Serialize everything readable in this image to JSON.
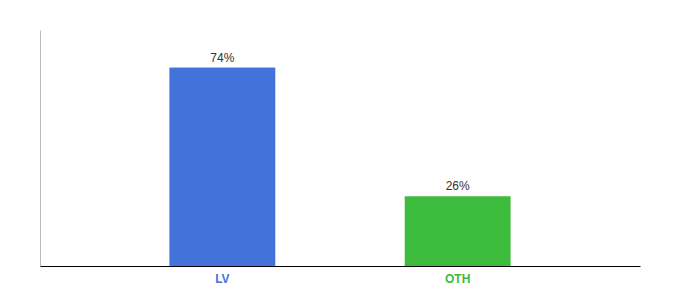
{
  "chart_data": {
    "type": "bar",
    "categories": [
      "LV",
      "OTH"
    ],
    "values": [
      74,
      26
    ],
    "value_labels": [
      "74%",
      "26%"
    ],
    "colors": [
      "#4472db",
      "#3dbb3d"
    ],
    "ylim": [
      0,
      88
    ],
    "data_labels": true,
    "tick_labels": "x"
  }
}
